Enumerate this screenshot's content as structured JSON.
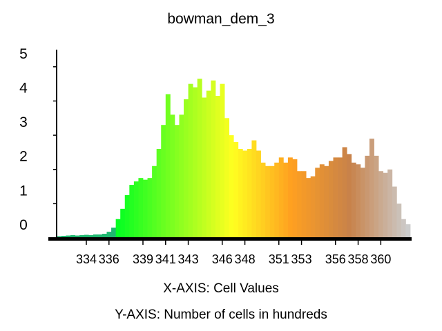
{
  "chart_data": {
    "type": "bar",
    "title": "bowman_dem_3",
    "xlabel": "X-AXIS: Cell Values",
    "ylabel": "Y-AXIS: Number of cells in hundreds",
    "x_range": [
      331.5,
      362.6
    ],
    "ylim": [
      0,
      5.5
    ],
    "x_ticks": [
      "334",
      "336",
      "339",
      "341",
      "343",
      "346",
      "348",
      "351",
      "353",
      "356",
      "358",
      "360"
    ],
    "x_tick_values": [
      334,
      336,
      339,
      341,
      343,
      346,
      348,
      351,
      353,
      356,
      358,
      360
    ],
    "y_ticks": [
      "0",
      "1",
      "2",
      "3",
      "4",
      "5"
    ],
    "y_tick_values": [
      0,
      1,
      2,
      3,
      4,
      5
    ],
    "grid": false,
    "legend": "none",
    "color_ramp": [
      "#00ff22",
      "#80ff20",
      "#ffff20",
      "#ffa020",
      "#c8824a",
      "#cccccc"
    ],
    "x": [
      331.6,
      332.0,
      332.4,
      332.8,
      333.2,
      333.6,
      334.0,
      334.4,
      334.8,
      335.2,
      335.6,
      336.0,
      336.4,
      336.8,
      337.2,
      337.6,
      338.0,
      338.4,
      338.8,
      339.2,
      339.6,
      340.0,
      340.4,
      340.8,
      341.2,
      341.6,
      342.0,
      342.4,
      342.8,
      343.2,
      343.6,
      344.0,
      344.4,
      344.8,
      345.2,
      345.6,
      346.0,
      346.4,
      346.8,
      347.2,
      347.6,
      348.0,
      348.4,
      348.8,
      349.2,
      349.6,
      350.0,
      350.4,
      350.8,
      351.2,
      351.6,
      352.0,
      352.4,
      352.8,
      353.2,
      353.6,
      354.0,
      354.4,
      354.8,
      355.2,
      355.6,
      356.0,
      356.4,
      356.8,
      357.2,
      357.6,
      358.0,
      358.4,
      358.8,
      359.2,
      359.6,
      360.0,
      360.4,
      360.8,
      361.2,
      361.6,
      362.0,
      362.4
    ],
    "values": [
      0.05,
      0.06,
      0.07,
      0.08,
      0.07,
      0.08,
      0.09,
      0.08,
      0.1,
      0.1,
      0.12,
      0.18,
      0.3,
      0.55,
      0.85,
      1.25,
      1.55,
      1.65,
      1.75,
      1.7,
      1.75,
      2.1,
      2.6,
      3.3,
      4.2,
      3.6,
      3.3,
      3.6,
      4.05,
      4.5,
      4.4,
      4.65,
      4.1,
      4.3,
      4.6,
      4.15,
      4.5,
      3.5,
      3.0,
      2.8,
      2.6,
      2.55,
      2.6,
      2.85,
      2.55,
      2.2,
      2.1,
      2.1,
      2.2,
      2.35,
      2.2,
      2.35,
      2.3,
      1.95,
      1.95,
      1.75,
      1.8,
      2.05,
      2.15,
      2.1,
      2.25,
      2.35,
      2.35,
      2.65,
      2.45,
      2.2,
      2.15,
      2.05,
      2.4,
      2.9,
      2.4,
      1.95,
      1.9,
      2.0,
      1.5,
      1.0,
      0.55,
      0.4
    ]
  }
}
